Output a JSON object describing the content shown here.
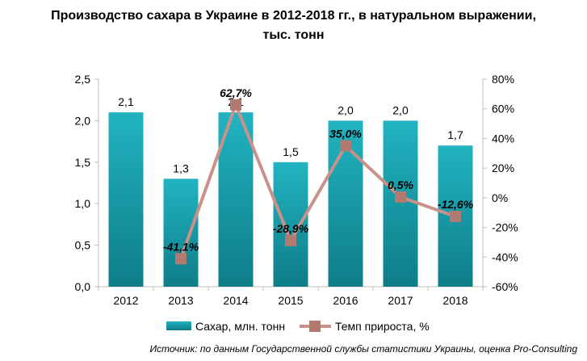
{
  "title_lines": [
    "Производство сахара в Украине в 2012-2018 гг., в натуральном выражении,",
    "тыс. тонн"
  ],
  "source": "Источник: по данным Государственной службы статистики Украины, оценка Pro-Consulting",
  "colors": {
    "bar": "#1aa7b5",
    "bar_dark": "#0f7f8a",
    "line": "#c9918a",
    "marker": "#b27b72",
    "axis": "#bfbfbf"
  },
  "chart_data": {
    "type": "bar",
    "categories": [
      "2012",
      "2013",
      "2014",
      "2015",
      "2016",
      "2017",
      "2018"
    ],
    "series": [
      {
        "name": "Сахар, млн. тонн",
        "type": "bar",
        "axis": "left",
        "values": [
          2.1,
          1.3,
          2.1,
          1.5,
          2.0,
          2.0,
          1.7
        ],
        "labels": [
          "2,1",
          "1,3",
          "2,1",
          "1,5",
          "2,0",
          "2,0",
          "1,7"
        ]
      },
      {
        "name": "Темп прироста, %",
        "type": "line",
        "axis": "right",
        "values": [
          null,
          -41.1,
          62.7,
          -28.9,
          35.0,
          0.5,
          -12.6
        ],
        "labels": [
          "",
          "-41,1%",
          "62,7%",
          "-28,9%",
          "35,0%",
          "0,5%",
          "-12,6%"
        ]
      }
    ],
    "y_left": {
      "min": 0,
      "max": 2.5,
      "ticks": [
        "0,0",
        "0,5",
        "1,0",
        "1,5",
        "2,0",
        "2,5"
      ]
    },
    "y_right": {
      "min": -60,
      "max": 80,
      "ticks": [
        "-60%",
        "-40%",
        "-20%",
        "0%",
        "20%",
        "40%",
        "60%",
        "80%"
      ]
    },
    "grid": false,
    "legend_position": "bottom"
  }
}
